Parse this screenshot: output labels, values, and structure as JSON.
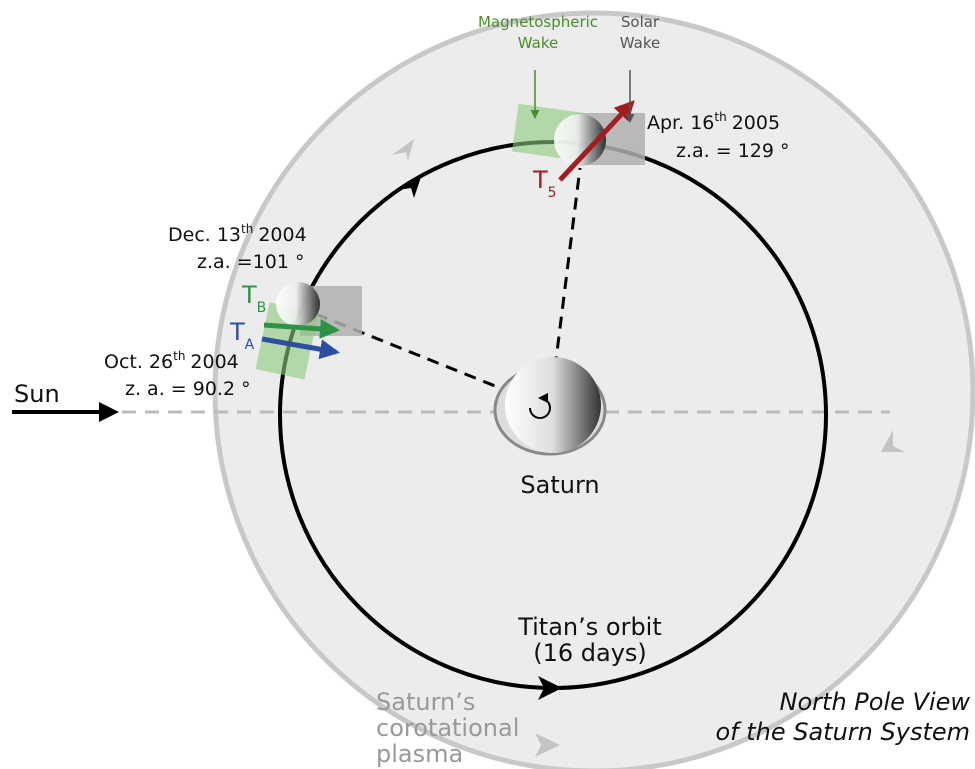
{
  "labels": {
    "magnetospheric_wake": [
      "Magnetospheric",
      "Wake"
    ],
    "solar_wake": [
      "Solar",
      "Wake"
    ],
    "apr": {
      "date": "Apr. 16",
      "sup": "th",
      "year": "2005",
      "za": "z.a. = 129 °"
    },
    "dec": {
      "date": "Dec. 13",
      "sup": "th",
      "year": "2004",
      "za": "z.a. =101 °"
    },
    "oct": {
      "date": "Oct. 26",
      "sup": "th",
      "year": "2004",
      "za": "z. a. = 90.2 °"
    },
    "t5": {
      "letter": "T",
      "sub": "5"
    },
    "tb": {
      "letter": "T",
      "sub": "B"
    },
    "ta": {
      "letter": "T",
      "sub": "A"
    },
    "sun": "Sun",
    "saturn": "Saturn",
    "orbit": [
      "Titan’s orbit",
      "(16 days)"
    ],
    "plasma": [
      "Saturn’s",
      "corotational",
      "plasma"
    ],
    "view": [
      "North Pole View",
      "of the Saturn System"
    ]
  }
}
